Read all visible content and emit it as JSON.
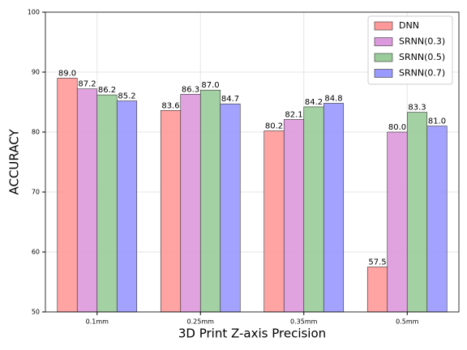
{
  "chart_data": {
    "type": "bar",
    "xlabel": "3D Print Z-axis Precision",
    "ylabel": "ACCURACY",
    "categories": [
      "0.1mm",
      "0.25mm",
      "0.35mm",
      "0.5mm"
    ],
    "series": [
      {
        "name": "DNN",
        "color": "#ff9999",
        "values": [
          89.0,
          83.6,
          80.2,
          57.5
        ],
        "value_labels": [
          "89.0",
          "83.6",
          "80.2",
          "57.5"
        ]
      },
      {
        "name": "SRNN(0.3)",
        "color": "#dd99dd",
        "values": [
          87.2,
          86.3,
          82.1,
          80.0
        ],
        "value_labels": [
          "87.2",
          "86.3",
          "82.1",
          "80.0"
        ]
      },
      {
        "name": "SRNN(0.5)",
        "color": "#99cc99",
        "values": [
          86.2,
          87.0,
          84.2,
          83.3
        ],
        "value_labels": [
          "86.2",
          "87.0",
          "84.2",
          "83.3"
        ]
      },
      {
        "name": "SRNN(0.7)",
        "color": "#9999ff",
        "values": [
          85.2,
          84.7,
          84.8,
          81.0
        ],
        "value_labels": [
          "85.2",
          "84.7",
          "84.8",
          "81.0"
        ]
      }
    ],
    "ylim": [
      50,
      100
    ],
    "yticks": [
      50,
      60,
      70,
      80,
      90,
      100
    ],
    "grid": true,
    "legend": "upper right"
  }
}
